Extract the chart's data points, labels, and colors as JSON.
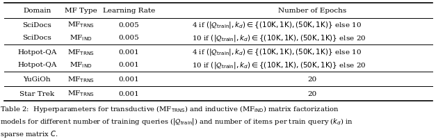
{
  "figsize": [
    6.4,
    2.01
  ],
  "dpi": 100,
  "bg_color": "#ffffff",
  "header": [
    "Domain",
    "MF Type",
    "Learning Rate",
    "Number of Epochs"
  ],
  "rows": [
    [
      "SciDocs",
      "MF$_{\\mathrm{TRNS}}$",
      "0.005",
      "4 if $(|\\mathcal{Q}_{\\mathrm{train}}|, k_d) \\in \\{(10\\mathrm{K},1\\mathrm{K}), (50\\mathrm{K}, 1\\mathrm{K})\\}$ else 10"
    ],
    [
      "SciDocs",
      "MF$_{\\mathrm{IND}}$",
      "0.005",
      "10 if $(|\\mathcal{Q}_{\\mathrm{train}}|, k_d) \\in \\{(10\\mathrm{K},1\\mathrm{K}), (50\\mathrm{K}, 1\\mathrm{K})\\}$ else 20"
    ],
    [
      "Hotpot-QA",
      "MF$_{\\mathrm{TRNS}}$",
      "0.001",
      "4 if $(|\\mathcal{Q}_{\\mathrm{train}}|, k_d) \\in \\{(10\\mathrm{K},1\\mathrm{K}), (50\\mathrm{K}, 1\\mathrm{K})\\}$ else 10"
    ],
    [
      "Hotpot-QA",
      "MF$_{\\mathrm{IND}}$",
      "0.001",
      "10 if $(|\\mathcal{Q}_{\\mathrm{train}}|, k_d) \\in \\{(10\\mathrm{K},1\\mathrm{K}), (50\\mathrm{K}, 1\\mathrm{K})\\}$ else 20"
    ],
    [
      "YuGiOh",
      "MF$_{\\mathrm{TRNS}}$",
      "0.001",
      "20"
    ],
    [
      "Star Trek",
      "MF$_{\\mathrm{TRNS}}$",
      "0.001",
      "20"
    ]
  ],
  "caption": "Table 2:  Hyperparameters for transductive (MF$_{\\mathrm{TRNS}}$) and inductive (MF$_{\\mathrm{IND}}$) matrix factorization\nmodels for different number of training queries ($|\\mathcal{Q}_{\\mathrm{train}}|$) and number of items per train query ($k_d$) in\nsparse matrix $C$.",
  "fontsize": 7.5,
  "caption_fontsize": 7.2
}
